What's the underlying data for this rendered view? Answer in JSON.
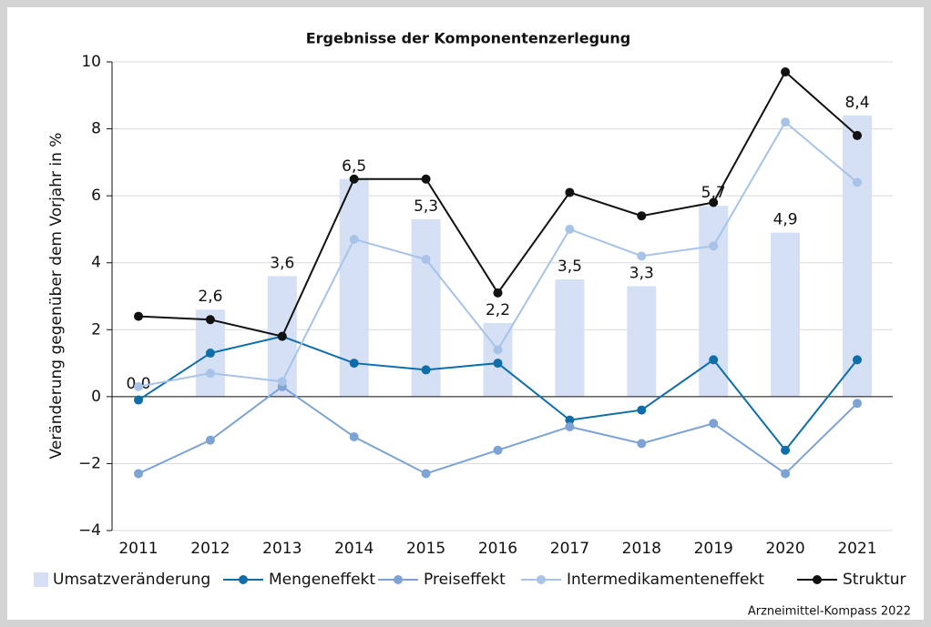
{
  "chart_data": {
    "type": "bar",
    "title": "Ergebnisse der Komponentenzerlegung",
    "y_label": "Veränderung gegenüber dem Vorjahr in %",
    "source": "Arzneimittel-Kompass 2022",
    "categories": [
      "2011",
      "2012",
      "2013",
      "2014",
      "2015",
      "2016",
      "2017",
      "2018",
      "2019",
      "2020",
      "2021"
    ],
    "ylim": [
      -4,
      10
    ],
    "yticks": [
      {
        "value": -4,
        "label": "−4"
      },
      {
        "value": -2,
        "label": "−2"
      },
      0,
      2,
      4,
      6,
      8,
      10
    ],
    "grid": true,
    "legend": "bottom",
    "series": [
      {
        "name": "Umsatzveränderung",
        "type": "bar",
        "color": "#d5e0f5",
        "values": [
          0.0,
          2.6,
          3.6,
          6.5,
          5.3,
          2.2,
          3.5,
          3.3,
          5.7,
          4.9,
          8.4
        ],
        "value_labels": [
          "0,0",
          "2,6",
          "3,6",
          "6,5",
          "5,3",
          "2,2",
          "3,5",
          "3,3",
          "5,7",
          "4,9",
          "8,4"
        ]
      },
      {
        "name": "Mengeneffekt",
        "type": "line",
        "color": "#0f6ea8",
        "values": [
          -0.1,
          1.3,
          1.8,
          1.0,
          0.8,
          1.0,
          -0.7,
          -0.4,
          1.1,
          -1.6,
          1.1
        ]
      },
      {
        "name": "Preiseffekt",
        "type": "line",
        "color": "#7da3d4",
        "values": [
          -2.3,
          -1.3,
          0.3,
          -1.2,
          -2.3,
          -1.6,
          -0.9,
          -1.4,
          -0.8,
          -2.3,
          -0.2
        ]
      },
      {
        "name": "Intermedikamenteneffekt",
        "type": "line",
        "color": "#a8c3e8",
        "values": [
          0.3,
          0.7,
          0.45,
          4.7,
          4.1,
          1.4,
          5.0,
          4.2,
          4.5,
          8.2,
          6.4
        ]
      },
      {
        "name": "Struktur",
        "type": "line",
        "color": "#111111",
        "values": [
          2.4,
          2.3,
          1.8,
          6.5,
          6.5,
          3.1,
          6.1,
          5.4,
          5.8,
          9.7,
          7.8
        ]
      }
    ]
  }
}
